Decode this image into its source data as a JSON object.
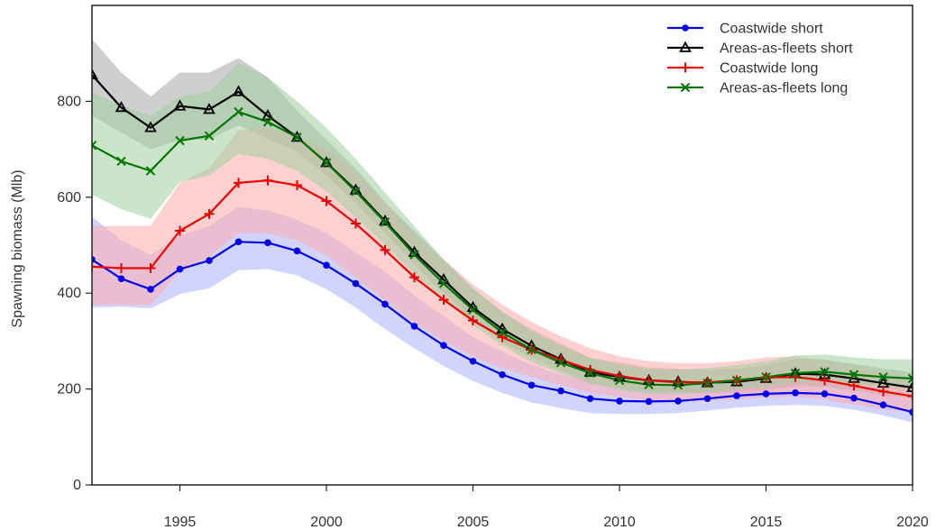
{
  "chart_data": {
    "type": "line",
    "title": "",
    "xlabel": "",
    "ylabel": "Spawning biomass (Mlb)",
    "xlim": [
      1992,
      2020
    ],
    "ylim": [
      0,
      1000
    ],
    "x_ticks": [
      1995,
      2000,
      2005,
      2010,
      2015,
      2020
    ],
    "y_ticks": [
      0,
      200,
      400,
      600,
      800
    ],
    "grid": false,
    "legend_position": "top-right",
    "x": [
      1992,
      1993,
      1994,
      1995,
      1996,
      1997,
      1998,
      1999,
      2000,
      2001,
      2002,
      2003,
      2004,
      2005,
      2006,
      2007,
      2008,
      2009,
      2010,
      2011,
      2012,
      2013,
      2014,
      2015,
      2016,
      2017,
      2018,
      2019,
      2020
    ],
    "series": [
      {
        "name": "Coastwide short",
        "color": "#0000ee",
        "band_color": "#aab0ff",
        "marker": "circle",
        "values": [
          470,
          430,
          408,
          450,
          468,
          507,
          505,
          488,
          458,
          420,
          377,
          331,
          291,
          258,
          230,
          208,
          196,
          180,
          175,
          174,
          175,
          180,
          186,
          190,
          192,
          190,
          181,
          167,
          152
        ],
        "lower": [
          370,
          372,
          368,
          398,
          410,
          448,
          450,
          437,
          408,
          370,
          325,
          285,
          248,
          217,
          192,
          172,
          160,
          150,
          148,
          148,
          150,
          155,
          161,
          165,
          167,
          165,
          157,
          145,
          130
        ],
        "upper": [
          560,
          510,
          480,
          520,
          540,
          580,
          572,
          553,
          525,
          485,
          445,
          395,
          352,
          308,
          278,
          250,
          230,
          215,
          205,
          204,
          205,
          210,
          214,
          217,
          220,
          218,
          210,
          195,
          180
        ]
      },
      {
        "name": "Areas-as-fleets short",
        "color": "#000000",
        "band_color": "#a8a8a8",
        "marker": "triangle",
        "values": [
          855,
          787,
          745,
          790,
          783,
          820,
          770,
          725,
          672,
          615,
          550,
          485,
          428,
          370,
          325,
          290,
          262,
          235,
          225,
          218,
          215,
          213,
          215,
          222,
          232,
          230,
          222,
          212,
          203
        ],
        "lower": [
          770,
          735,
          700,
          720,
          720,
          750,
          722,
          695,
          645,
          588,
          525,
          460,
          400,
          345,
          298,
          265,
          238,
          213,
          203,
          196,
          193,
          191,
          193,
          198,
          206,
          205,
          197,
          188,
          180
        ],
        "upper": [
          930,
          860,
          810,
          860,
          860,
          890,
          850,
          780,
          720,
          660,
          590,
          530,
          470,
          410,
          360,
          325,
          295,
          265,
          255,
          245,
          242,
          240,
          242,
          250,
          263,
          262,
          252,
          243,
          235
        ]
      },
      {
        "name": "Coastwide long",
        "color": "#ee0000",
        "band_color": "#ffaaaa",
        "marker": "plus",
        "values": [
          455,
          452,
          452,
          530,
          565,
          630,
          635,
          625,
          592,
          545,
          490,
          433,
          386,
          343,
          308,
          282,
          261,
          240,
          227,
          218,
          214,
          214,
          218,
          224,
          225,
          218,
          207,
          195,
          185
        ],
        "lower": [
          375,
          375,
          375,
          445,
          475,
          525,
          525,
          510,
          478,
          432,
          385,
          338,
          300,
          268,
          243,
          225,
          208,
          192,
          183,
          177,
          175,
          175,
          178,
          183,
          184,
          178,
          168,
          158,
          150
        ],
        "upper": [
          540,
          540,
          540,
          630,
          660,
          740,
          745,
          730,
          700,
          652,
          590,
          525,
          470,
          418,
          376,
          340,
          310,
          285,
          268,
          258,
          254,
          254,
          258,
          266,
          268,
          260,
          248,
          235,
          222
        ]
      },
      {
        "name": "Areas-as-fleets long",
        "color": "#007700",
        "band_color": "#9fcf9f",
        "marker": "cross",
        "values": [
          708,
          675,
          655,
          718,
          728,
          778,
          757,
          725,
          672,
          612,
          548,
          480,
          420,
          365,
          318,
          282,
          255,
          233,
          218,
          209,
          208,
          212,
          218,
          225,
          233,
          236,
          230,
          225,
          222
        ],
        "lower": [
          605,
          575,
          555,
          632,
          645,
          690,
          680,
          655,
          612,
          558,
          500,
          440,
          385,
          333,
          290,
          256,
          232,
          212,
          198,
          190,
          190,
          193,
          199,
          206,
          213,
          216,
          210,
          205,
          200
        ],
        "upper": [
          820,
          790,
          770,
          810,
          820,
          880,
          850,
          800,
          745,
          680,
          610,
          540,
          470,
          410,
          362,
          320,
          290,
          265,
          250,
          242,
          240,
          244,
          250,
          258,
          270,
          272,
          266,
          262,
          262
        ]
      }
    ]
  }
}
